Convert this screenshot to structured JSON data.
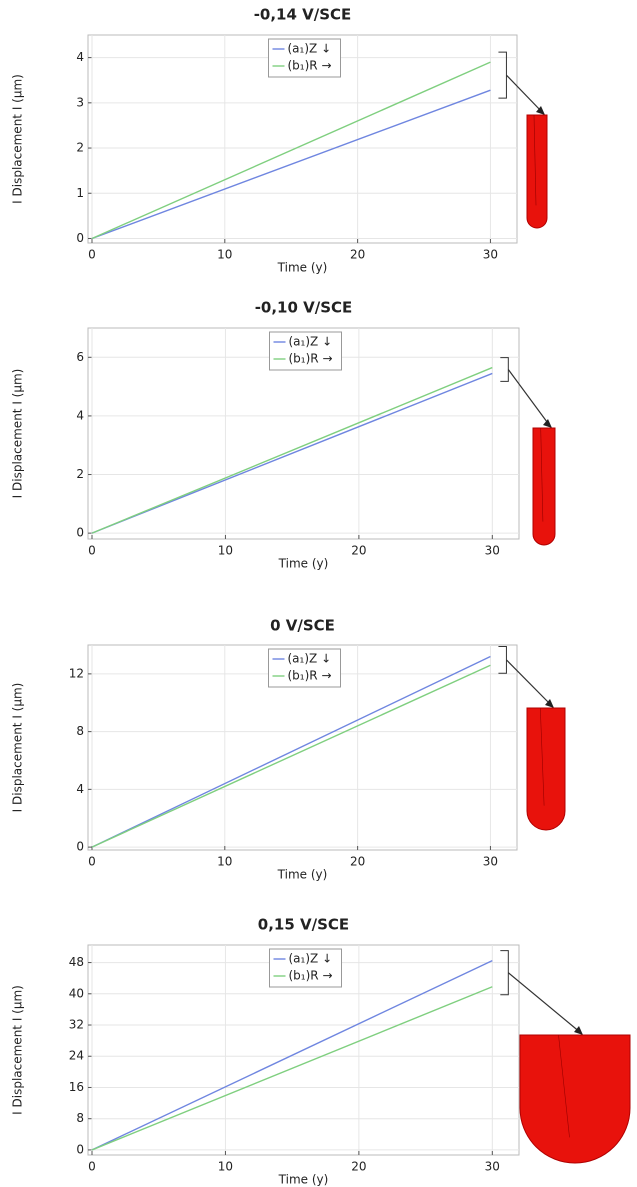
{
  "chart_data": [
    {
      "type": "line",
      "title": "-0,14 V/SCE",
      "x_label": "Time (y)",
      "y_label": "I Displacement I (µm)",
      "x": [
        0,
        30
      ],
      "xlim": [
        -0.3,
        32
      ],
      "xticks": [
        0,
        10,
        20,
        30
      ],
      "ylim": [
        -0.1,
        4.5
      ],
      "yticks": [
        0,
        1,
        2,
        3,
        4
      ],
      "grid": true,
      "series": [
        {
          "name": "(a₁)Z ↓",
          "color": "#6f86e0",
          "values": [
            0,
            3.28
          ]
        },
        {
          "name": "(b₁)R →",
          "color": "#7fcf7f",
          "values": [
            0,
            3.9
          ]
        }
      ]
    },
    {
      "type": "line",
      "title": "-0,10 V/SCE",
      "x_label": "Time (y)",
      "y_label": "I Displacement I (µm)",
      "x": [
        0,
        30
      ],
      "xlim": [
        -0.3,
        32
      ],
      "xticks": [
        0,
        10,
        20,
        30
      ],
      "ylim": [
        -0.2,
        7
      ],
      "yticks": [
        0,
        2,
        4,
        6
      ],
      "grid": true,
      "series": [
        {
          "name": "(a₁)Z ↓",
          "color": "#6f86e0",
          "values": [
            0,
            5.45
          ]
        },
        {
          "name": "(b₁)R →",
          "color": "#7fcf7f",
          "values": [
            0,
            5.65
          ]
        }
      ]
    },
    {
      "type": "line",
      "title": "0 V/SCE",
      "x_label": "Time (y)",
      "y_label": "I Displacement I (µm)",
      "x": [
        0,
        30
      ],
      "xlim": [
        -0.3,
        32
      ],
      "xticks": [
        0,
        10,
        20,
        30
      ],
      "ylim": [
        -0.2,
        14
      ],
      "yticks": [
        0,
        4,
        8,
        12
      ],
      "grid": true,
      "series": [
        {
          "name": "(a₁)Z ↓",
          "color": "#6f86e0",
          "values": [
            0,
            13.2
          ]
        },
        {
          "name": "(b₁)R →",
          "color": "#7fcf7f",
          "values": [
            0,
            12.6
          ]
        }
      ]
    },
    {
      "type": "line",
      "title": "0,15 V/SCE",
      "x_label": "Time (y)",
      "y_label": "I Displacement I (µm)",
      "x": [
        0,
        30
      ],
      "xlim": [
        -0.3,
        32
      ],
      "xticks": [
        0,
        10,
        20,
        30
      ],
      "ylim": [
        -1.3,
        52.5
      ],
      "yticks": [
        0,
        8,
        16,
        24,
        32,
        40,
        48
      ],
      "grid": true,
      "series": [
        {
          "name": "(a₁)Z ↓",
          "color": "#6f86e0",
          "values": [
            0,
            48.5
          ]
        },
        {
          "name": "(b₁)R →",
          "color": "#7fcf7f",
          "values": [
            0,
            41.8
          ]
        }
      ]
    }
  ]
}
